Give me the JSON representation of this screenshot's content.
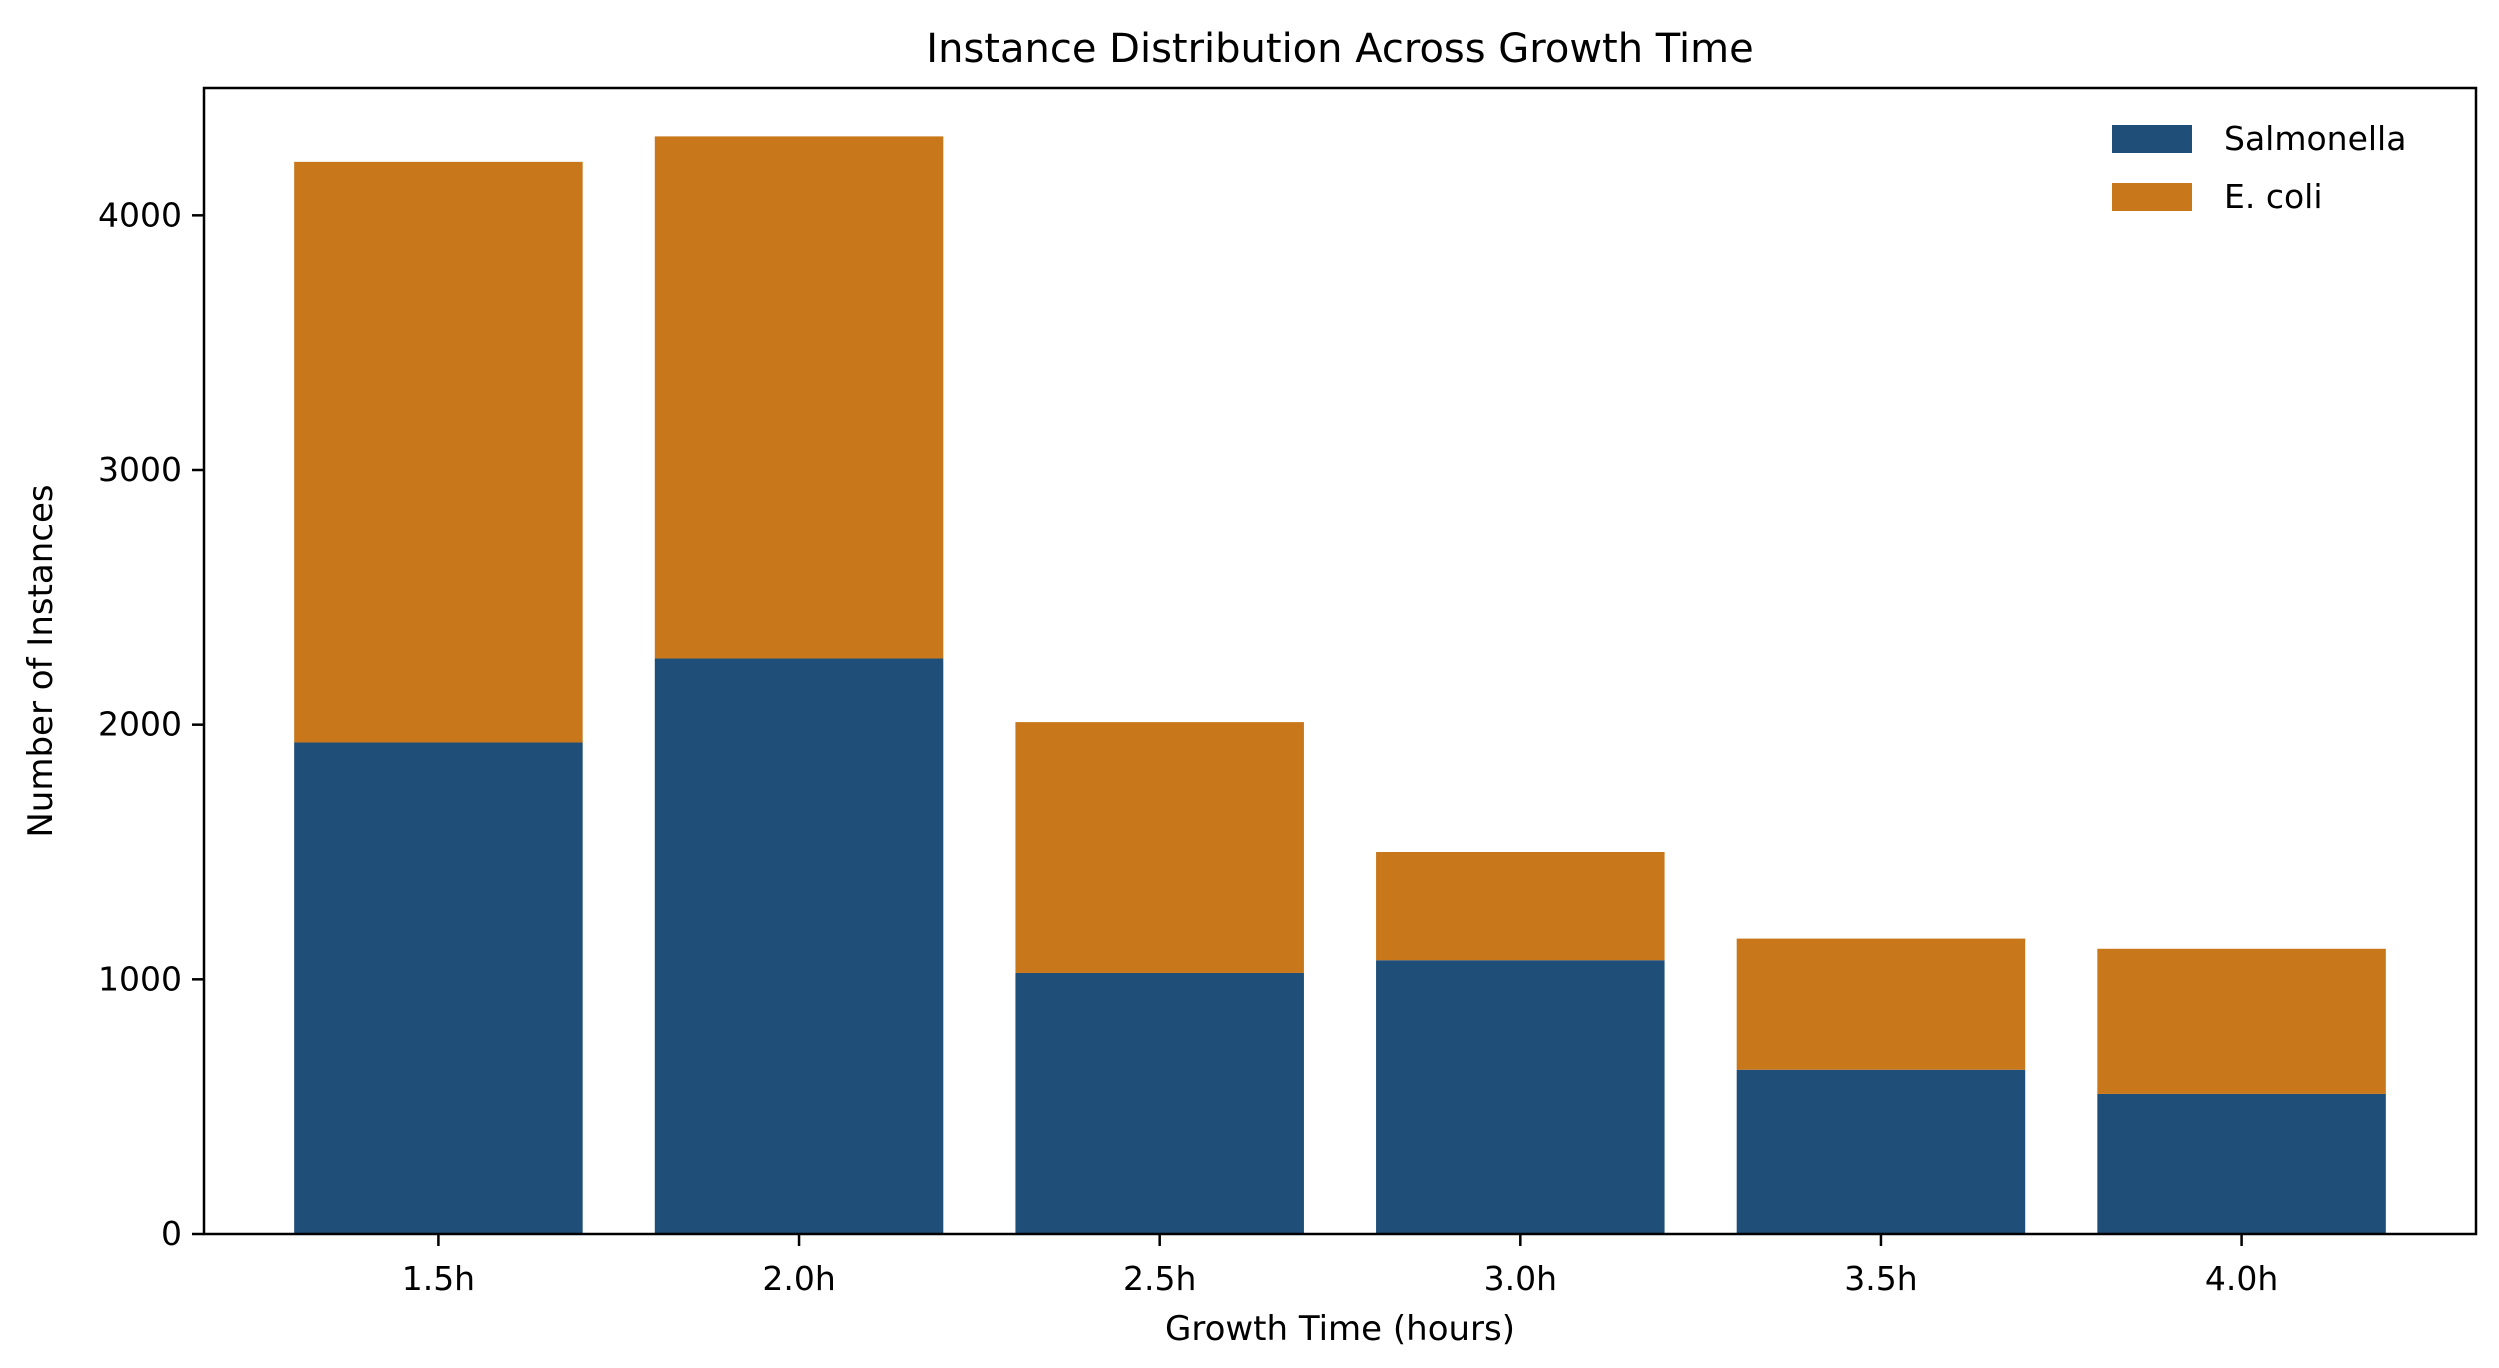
{
  "chart_data": {
    "type": "bar",
    "stacked": true,
    "title": "Instance Distribution Across Growth Time",
    "xlabel": "Growth Time (hours)",
    "ylabel": "Number of Instances",
    "categories": [
      "1.5h",
      "2.0h",
      "2.5h",
      "3.0h",
      "3.5h",
      "4.0h"
    ],
    "series": [
      {
        "name": "Salmonella",
        "color": "#1f4e79",
        "values": [
          1930,
          2260,
          1025,
          1075,
          645,
          550
        ]
      },
      {
        "name": "E. coli",
        "color": "#c8781a",
        "values": [
          2280,
          2050,
          985,
          425,
          515,
          570
        ]
      }
    ],
    "ylim": [
      0,
      4500
    ],
    "yticks": [
      0,
      1000,
      2000,
      3000,
      4000
    ],
    "yticks_labels": [
      "0",
      "1000",
      "2000",
      "3000",
      "4000"
    ],
    "grid": false,
    "legend_position": "top-right"
  }
}
